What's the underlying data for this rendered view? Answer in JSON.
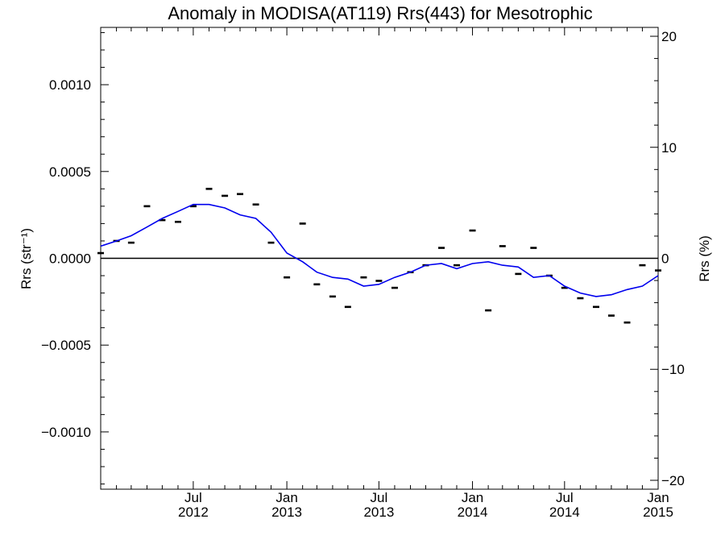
{
  "chart_data": {
    "type": "line",
    "title": "Anomaly in MODISA(AT119) Rrs(443) for Mesotrophic",
    "ylabel_left": "Rrs (str⁻¹)",
    "ylabel_right": "Rrs (%)",
    "xlim": [
      "2012-01-01",
      "2015-01-01"
    ],
    "ylim_left": [
      -0.00133,
      0.00133
    ],
    "ylim_right": [
      -20.8,
      20.8
    ],
    "left_ticks": [
      {
        "value": 0.001,
        "label": "0.0010"
      },
      {
        "value": 0.0005,
        "label": "0.0005"
      },
      {
        "value": 0.0,
        "label": "0.0000"
      },
      {
        "value": -0.0005,
        "label": "−0.0005"
      },
      {
        "value": -0.001,
        "label": "−0.0010"
      }
    ],
    "right_ticks": [
      {
        "value": 20,
        "label": "20"
      },
      {
        "value": 10,
        "label": "10"
      },
      {
        "value": 0,
        "label": "0"
      },
      {
        "value": -10,
        "label": "−10"
      },
      {
        "value": -20,
        "label": "−20"
      }
    ],
    "x_ticks": [
      {
        "date": "2012-07-01",
        "month": "Jul",
        "year": "2012"
      },
      {
        "date": "2013-01-01",
        "month": "Jan",
        "year": "2013"
      },
      {
        "date": "2013-07-01",
        "month": "Jul",
        "year": "2013"
      },
      {
        "date": "2014-01-01",
        "month": "Jan",
        "year": "2014"
      },
      {
        "date": "2014-07-01",
        "month": "Jul",
        "year": "2014"
      },
      {
        "date": "2015-01-01",
        "month": "Jan",
        "year": "2015"
      }
    ],
    "series": [
      {
        "kind": "monthly-markers",
        "color": "#000000",
        "points": [
          {
            "x": "2012-01-01",
            "y": 3e-05
          },
          {
            "x": "2012-02-01",
            "y": 0.0001
          },
          {
            "x": "2012-03-01",
            "y": 9e-05
          },
          {
            "x": "2012-04-01",
            "y": 0.0003
          },
          {
            "x": "2012-05-01",
            "y": 0.00022
          },
          {
            "x": "2012-06-01",
            "y": 0.00021
          },
          {
            "x": "2012-07-01",
            "y": 0.0003
          },
          {
            "x": "2012-08-01",
            "y": 0.0004
          },
          {
            "x": "2012-09-01",
            "y": 0.00036
          },
          {
            "x": "2012-10-01",
            "y": 0.00037
          },
          {
            "x": "2012-11-01",
            "y": 0.00031
          },
          {
            "x": "2012-12-01",
            "y": 9e-05
          },
          {
            "x": "2013-01-01",
            "y": -0.00011
          },
          {
            "x": "2013-02-01",
            "y": 0.0002
          },
          {
            "x": "2013-03-01",
            "y": -0.00015
          },
          {
            "x": "2013-04-01",
            "y": -0.00022
          },
          {
            "x": "2013-05-01",
            "y": -0.00028
          },
          {
            "x": "2013-06-01",
            "y": -0.00011
          },
          {
            "x": "2013-07-01",
            "y": -0.00013
          },
          {
            "x": "2013-08-01",
            "y": -0.00017
          },
          {
            "x": "2013-09-01",
            "y": -8e-05
          },
          {
            "x": "2013-10-01",
            "y": -4e-05
          },
          {
            "x": "2013-11-01",
            "y": 6e-05
          },
          {
            "x": "2013-12-01",
            "y": -4e-05
          },
          {
            "x": "2014-01-01",
            "y": 0.00016
          },
          {
            "x": "2014-02-01",
            "y": -0.0003
          },
          {
            "x": "2014-03-01",
            "y": 7e-05
          },
          {
            "x": "2014-04-01",
            "y": -9e-05
          },
          {
            "x": "2014-05-01",
            "y": 6e-05
          },
          {
            "x": "2014-06-01",
            "y": -0.0001
          },
          {
            "x": "2014-07-01",
            "y": -0.00017
          },
          {
            "x": "2014-08-01",
            "y": -0.00023
          },
          {
            "x": "2014-09-01",
            "y": -0.00028
          },
          {
            "x": "2014-10-01",
            "y": -0.00033
          },
          {
            "x": "2014-11-01",
            "y": -0.00037
          },
          {
            "x": "2014-12-01",
            "y": -4e-05
          },
          {
            "x": "2015-01-01",
            "y": -7e-05
          }
        ]
      },
      {
        "kind": "smoothed-line",
        "color": "#0000ee",
        "points": [
          {
            "x": "2012-01-01",
            "y": 7e-05
          },
          {
            "x": "2012-02-01",
            "y": 0.0001
          },
          {
            "x": "2012-03-01",
            "y": 0.00013
          },
          {
            "x": "2012-04-01",
            "y": 0.00018
          },
          {
            "x": "2012-05-01",
            "y": 0.00023
          },
          {
            "x": "2012-06-01",
            "y": 0.00027
          },
          {
            "x": "2012-07-01",
            "y": 0.00031
          },
          {
            "x": "2012-08-01",
            "y": 0.00031
          },
          {
            "x": "2012-09-01",
            "y": 0.00029
          },
          {
            "x": "2012-10-01",
            "y": 0.00025
          },
          {
            "x": "2012-11-01",
            "y": 0.00023
          },
          {
            "x": "2012-12-01",
            "y": 0.00015
          },
          {
            "x": "2013-01-01",
            "y": 3e-05
          },
          {
            "x": "2013-02-01",
            "y": -2e-05
          },
          {
            "x": "2013-03-01",
            "y": -8e-05
          },
          {
            "x": "2013-04-01",
            "y": -0.00011
          },
          {
            "x": "2013-05-01",
            "y": -0.00012
          },
          {
            "x": "2013-06-01",
            "y": -0.00016
          },
          {
            "x": "2013-07-01",
            "y": -0.00015
          },
          {
            "x": "2013-08-01",
            "y": -0.00011
          },
          {
            "x": "2013-09-01",
            "y": -8e-05
          },
          {
            "x": "2013-10-01",
            "y": -4e-05
          },
          {
            "x": "2013-11-01",
            "y": -3e-05
          },
          {
            "x": "2013-12-01",
            "y": -6e-05
          },
          {
            "x": "2014-01-01",
            "y": -3e-05
          },
          {
            "x": "2014-02-01",
            "y": -2e-05
          },
          {
            "x": "2014-03-01",
            "y": -4e-05
          },
          {
            "x": "2014-04-01",
            "y": -5e-05
          },
          {
            "x": "2014-05-01",
            "y": -0.00011
          },
          {
            "x": "2014-06-01",
            "y": -0.0001
          },
          {
            "x": "2014-07-01",
            "y": -0.00016
          },
          {
            "x": "2014-08-01",
            "y": -0.0002
          },
          {
            "x": "2014-09-01",
            "y": -0.00022
          },
          {
            "x": "2014-10-01",
            "y": -0.00021
          },
          {
            "x": "2014-11-01",
            "y": -0.00018
          },
          {
            "x": "2014-12-01",
            "y": -0.00016
          },
          {
            "x": "2015-01-01",
            "y": -0.0001
          }
        ]
      }
    ],
    "zero_line": true,
    "grid": false
  }
}
